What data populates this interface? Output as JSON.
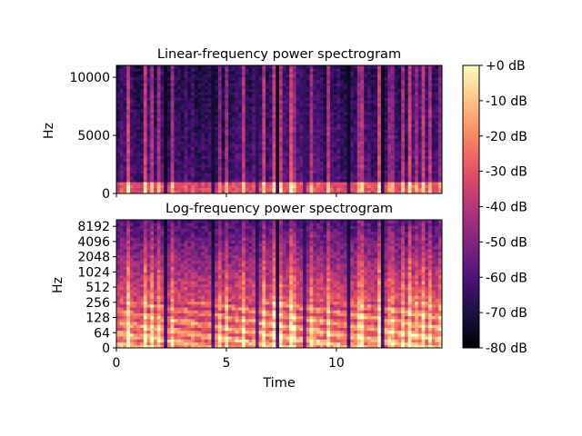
{
  "chart_data": [
    {
      "type": "heatmap",
      "title": "Linear-frequency power spectrogram",
      "xlabel": "",
      "ylabel": "Hz",
      "xlim": [
        0,
        14.8
      ],
      "ylim": [
        0,
        11025
      ],
      "yscale": "linear",
      "yticks": [
        0,
        5000,
        10000
      ],
      "ytick_labels": [
        "0",
        "5000",
        "10000"
      ],
      "xticks": [
        0,
        5,
        10
      ],
      "xtick_labels_shown": false,
      "z_range_db": [
        -80,
        0
      ],
      "colormap": "magma"
    },
    {
      "type": "heatmap",
      "title": "Log-frequency power spectrogram",
      "xlabel": "Time",
      "ylabel": "Hz",
      "xlim": [
        0,
        14.8
      ],
      "ylim": [
        0,
        11025
      ],
      "yscale": "symlog",
      "yticks": [
        0,
        64,
        128,
        256,
        512,
        1024,
        2048,
        4096,
        8192
      ],
      "ytick_labels": [
        "0",
        "64",
        "128",
        "256",
        "512",
        "1024",
        "2048",
        "4096",
        "8192"
      ],
      "xticks": [
        0,
        5,
        10
      ],
      "xtick_labels": [
        "0",
        "5",
        "10"
      ],
      "z_range_db": [
        -80,
        0
      ],
      "colormap": "magma"
    }
  ],
  "colorbar": {
    "ticks": [
      0,
      -10,
      -20,
      -30,
      -40,
      -50,
      -60,
      -70,
      -80
    ],
    "tick_labels": [
      "+0 dB",
      "-10 dB",
      "-20 dB",
      "-30 dB",
      "-40 dB",
      "-50 dB",
      "-60 dB",
      "-70 dB",
      "-80 dB"
    ],
    "range": [
      -80,
      0
    ],
    "colors": [
      "#000004",
      "#1c1044",
      "#4f127b",
      "#812581",
      "#b5367a",
      "#e55064",
      "#fb8761",
      "#fec287",
      "#fcfdbf"
    ]
  }
}
